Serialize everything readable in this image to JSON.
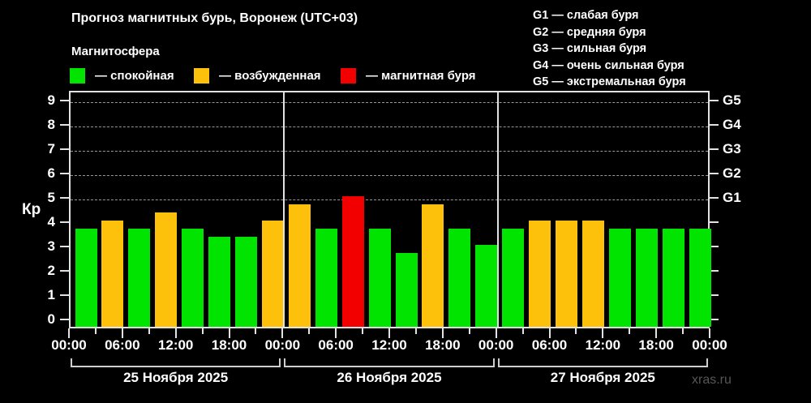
{
  "header": {
    "title": "Прогноз магнитных бурь, Воронеж (UTC+03)",
    "subtitle": "Магнитосфера"
  },
  "colors": {
    "quiet": "#00e400",
    "excited": "#fdc10b",
    "storm": "#f20000",
    "axis": "#e2e2e2",
    "grid": "#989898",
    "watermark_text": "#565656"
  },
  "legend": [
    {
      "key": "quiet",
      "label": "— спокойная"
    },
    {
      "key": "excited",
      "label": "— возбужденная"
    },
    {
      "key": "storm",
      "label": "— магнитная буря"
    }
  ],
  "g_legend": [
    {
      "code": "G1",
      "label": "слабая буря"
    },
    {
      "code": "G2",
      "label": "средняя буря"
    },
    {
      "code": "G3",
      "label": "сильная буря"
    },
    {
      "code": "G4",
      "label": "очень сильная буря"
    },
    {
      "code": "G5",
      "label": "экстремальная буря"
    }
  ],
  "axes": {
    "y_label": "Кр",
    "y_ticks": [
      0,
      1,
      2,
      3,
      4,
      5,
      6,
      7,
      8,
      9
    ],
    "right_g_ticks": [
      {
        "label": "G1",
        "kp": 5
      },
      {
        "label": "G2",
        "kp": 6
      },
      {
        "label": "G3",
        "kp": 7
      },
      {
        "label": "G4",
        "kp": 8
      },
      {
        "label": "G5",
        "kp": 9
      }
    ],
    "grid_levels": [
      5,
      6,
      7,
      8,
      9
    ],
    "time_labels": [
      "00:00",
      "06:00",
      "12:00",
      "18:00"
    ],
    "closing_time_label": "00:00"
  },
  "watermark": "xras.ru",
  "chart_data": {
    "type": "bar",
    "title": "Прогноз магнитных бурь, Воронеж (UTC+03)",
    "ylabel": "Кр",
    "ylim": [
      0,
      9.4
    ],
    "interval_hours": 3,
    "legend_position": "top",
    "grid": "dashed horizontal at Kp 5-9 (G1-G5)",
    "days": [
      {
        "date": "25 Ноября 2025",
        "values": [
          3.67,
          4.0,
          3.67,
          4.33,
          3.67,
          3.33,
          3.33,
          4.0
        ],
        "states": [
          "quiet",
          "excited",
          "quiet",
          "excited",
          "quiet",
          "quiet",
          "quiet",
          "excited"
        ]
      },
      {
        "date": "26 Ноября 2025",
        "values": [
          4.67,
          3.67,
          5.0,
          3.67,
          2.67,
          4.67,
          3.67,
          3.0
        ],
        "states": [
          "excited",
          "quiet",
          "storm",
          "quiet",
          "quiet",
          "excited",
          "quiet",
          "quiet"
        ]
      },
      {
        "date": "27 Ноября 2025",
        "values": [
          3.67,
          4.0,
          4.0,
          4.0,
          3.67,
          3.67,
          3.67,
          3.67
        ],
        "states": [
          "quiet",
          "excited",
          "excited",
          "excited",
          "quiet",
          "quiet",
          "quiet",
          "quiet"
        ]
      }
    ]
  }
}
